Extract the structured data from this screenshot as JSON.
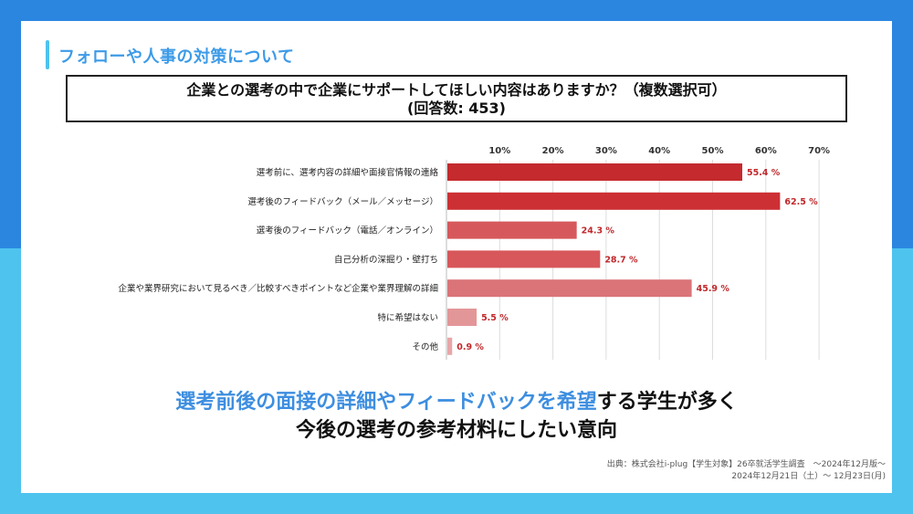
{
  "slide": {
    "heading": "フォローや人事の対策について",
    "question_line1": "企業との選考の中で企業にサポートしてほしい内容はありますか？（複数選択可）",
    "question_line2": "(回答数: 453)",
    "conclusion_line1_highlight": "選考前後の面接の詳細やフィードバックを希望",
    "conclusion_line1_rest": "する学生が多く",
    "conclusion_line2": "今後の選考の参考材料にしたい意向",
    "source_line1": "出典：株式会社i-plug【学生対象】26卒就活学生調査　〜2024年12月版〜",
    "source_line2": "2024年12月21日（土）〜 12月23日(月)"
  },
  "colors": {
    "bg_top": "#2b86e0",
    "bg_bottom": "#4dc3ee",
    "heading": "#3d9be8",
    "highlight": "#3d8ee0",
    "label_red": "#c0282b"
  },
  "chart_data": {
    "type": "bar",
    "orientation": "horizontal",
    "title": "企業との選考の中で企業にサポートしてほしい内容はありますか？（複数選択可）",
    "xlim": [
      0,
      70
    ],
    "xticks": [
      10,
      20,
      30,
      40,
      50,
      60,
      70
    ],
    "xtick_labels": [
      "10%",
      "20%",
      "30%",
      "40%",
      "50%",
      "60%",
      "70%"
    ],
    "grid": true,
    "categories": [
      "選考前に、選考内容の詳細や面接官情報の連絡",
      "選考後のフィードバック（メール／メッセージ）",
      "選考後のフィードバック（電話／オンライン）",
      "自己分析の深掘り・壁打ち",
      "企業や業界研究において見るべき／比較すべきポイントなど企業や業界理解の詳細",
      "特に希望はない",
      "その他"
    ],
    "values": [
      55.4,
      62.5,
      24.3,
      28.7,
      45.9,
      5.5,
      0.9
    ],
    "value_labels": [
      "55.4 %",
      "62.5 %",
      "24.3 %",
      "28.7 %",
      "45.9 %",
      "5.5 %",
      "0.9 %"
    ],
    "bar_colors": [
      "#c42a2e",
      "#cc3035",
      "#d6585c",
      "#d7575b",
      "#da7478",
      "#e39698",
      "#e8a6a8"
    ]
  }
}
